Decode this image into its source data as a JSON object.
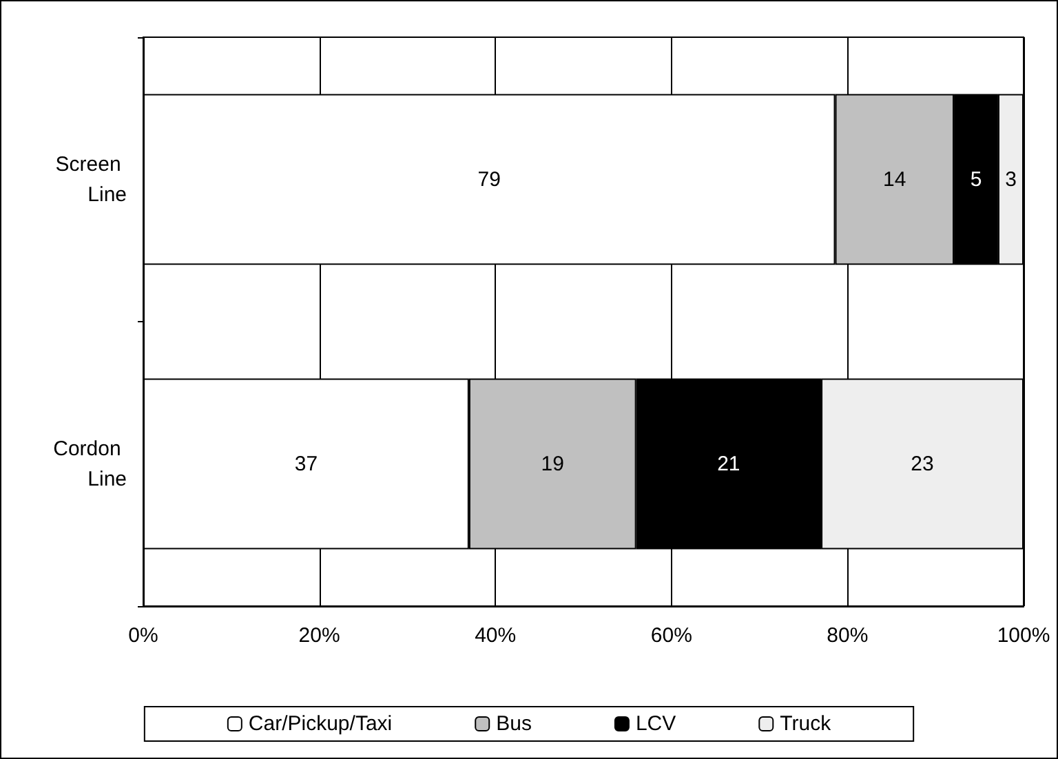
{
  "chart_data": {
    "type": "bar",
    "orientation": "horizontal",
    "stacked": true,
    "categories": [
      "Screen Line",
      "Cordon Line"
    ],
    "series": [
      {
        "name": "Car/Pickup/Taxi",
        "color": "#ffffff",
        "values": [
          78.6,
          37
        ],
        "value_labels": [
          "79",
          "37"
        ]
      },
      {
        "name": "Bus",
        "color": "#c0c0c0",
        "values": [
          13.5,
          19
        ],
        "value_labels": [
          "14",
          "19"
        ]
      },
      {
        "name": "LCV",
        "color": "#000000",
        "values": [
          5.0,
          21
        ],
        "value_labels": [
          "5",
          "21"
        ]
      },
      {
        "name": "Truck",
        "color": "#eeeeee",
        "values": [
          2.9,
          23
        ],
        "value_labels": [
          "3",
          "23"
        ]
      }
    ],
    "xlim": [
      0,
      100
    ],
    "xticks": [
      {
        "value": 0,
        "label": "0%"
      },
      {
        "value": 20,
        "label": "20%"
      },
      {
        "value": 40,
        "label": "40%"
      },
      {
        "value": 60,
        "label": "60%"
      },
      {
        "value": 80,
        "label": "80%"
      },
      {
        "value": 100,
        "label": "100%"
      }
    ],
    "grid": "x",
    "legend": "bottom"
  }
}
